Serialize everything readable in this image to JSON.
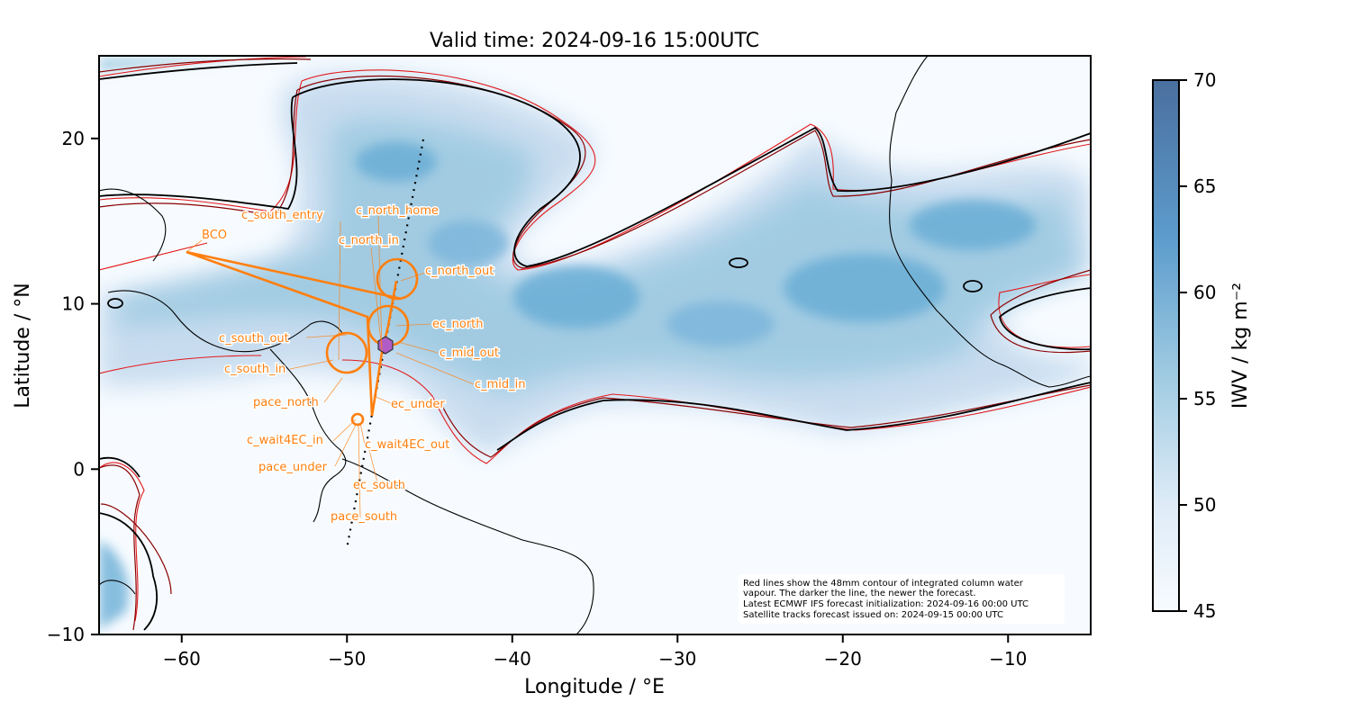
{
  "title": "Valid time: 2024-09-16 15:00UTC",
  "xlabel": "Longitude / °E",
  "ylabel": "Latitude / °N",
  "x_ticks": [
    {
      "value": -60,
      "label": "−60"
    },
    {
      "value": -50,
      "label": "−50"
    },
    {
      "value": -40,
      "label": "−40"
    },
    {
      "value": -30,
      "label": "−30"
    },
    {
      "value": -20,
      "label": "−20"
    },
    {
      "value": -10,
      "label": "−10"
    }
  ],
  "y_ticks": [
    {
      "value": 20,
      "label": "20"
    },
    {
      "value": 10,
      "label": "10"
    },
    {
      "value": 0,
      "label": "0"
    },
    {
      "value": -10,
      "label": "−10"
    }
  ],
  "colorbar": {
    "label": "IWV / kg m⁻²",
    "range": [
      45,
      70
    ],
    "ticks": [
      {
        "value": 45,
        "label": "45"
      },
      {
        "value": 50,
        "label": "50"
      },
      {
        "value": 55,
        "label": "55"
      },
      {
        "value": 60,
        "label": "60"
      },
      {
        "value": 65,
        "label": "65"
      },
      {
        "value": 70,
        "label": "70"
      }
    ],
    "colors": [
      "#f7fbff",
      "#c6dbef",
      "#6baed6",
      "#4a82b8",
      "#4a6f9e"
    ]
  },
  "note_lines": [
    "Red lines show the 48mm contour of integrated column water",
    "vapour. The darker the line, the newer the forecast.",
    "Latest ECMWF IFS forecast initialization: 2024-09-16 00:00 UTC",
    "Satellite tracks forecast issued on: 2024-09-15 00:00 UTC"
  ],
  "waypoint_labels": {
    "bco": "BCO",
    "c_south_entry": "c_south_entry",
    "c_north_home": "c_north_home",
    "c_north_in": "c_north_in",
    "c_north_out": "c_north_out",
    "ec_north": "ec_north",
    "c_south_out": "c_south_out",
    "c_mid_out": "c_mid_out",
    "c_south_in": "c_south_in",
    "c_mid_in": "c_mid_in",
    "pace_north": "pace_north",
    "ec_under": "ec_under",
    "c_wait4ec_in": "c_wait4EC_in",
    "c_wait4ec_out": "c_wait4EC_out",
    "pace_under": "pace_under",
    "ec_south": "ec_south",
    "pace_south": "pace_south"
  },
  "colors": {
    "flight_track": "#ff7f0e",
    "contour_newest": "#000000",
    "contour_mid": "#8b0000",
    "contour_old": "#e31a1c",
    "sonde_marker": "#b05cc6",
    "satellite_track": "#000000"
  }
}
